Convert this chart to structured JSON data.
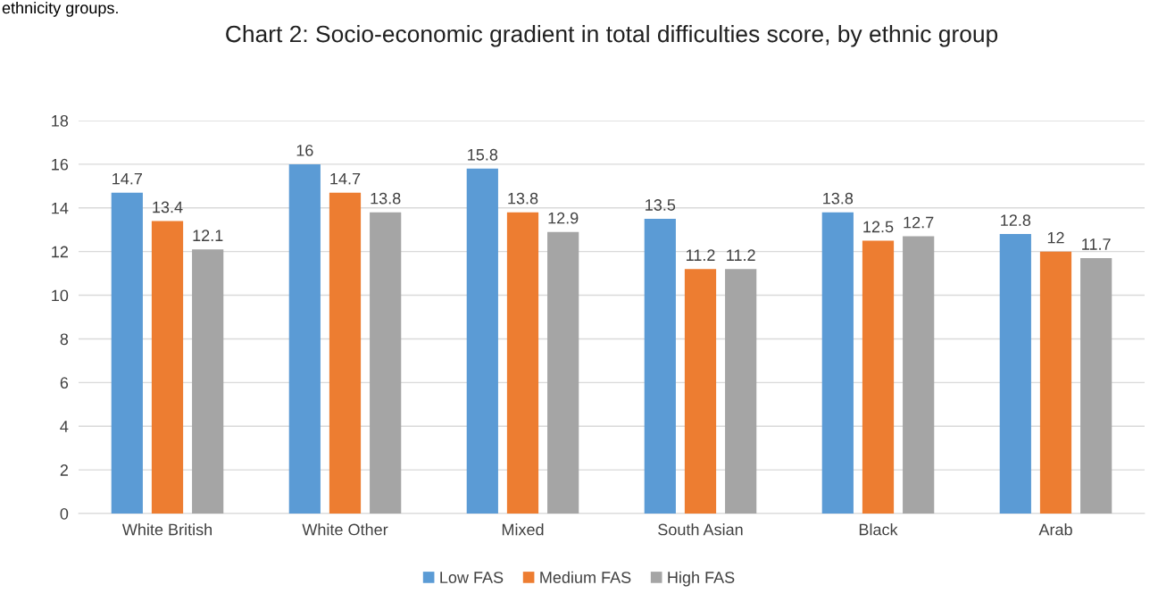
{
  "chart_data": {
    "type": "bar",
    "title": "Chart 2: Socio-economic gradient in total difficulties score, by ethnic group",
    "annotations": [
      "ethnicity groups."
    ],
    "categories": [
      "White British",
      "White Other",
      "Mixed",
      "South Asian",
      "Black",
      "Arab"
    ],
    "series": [
      {
        "name": "Low FAS",
        "color": "#5b9bd5",
        "values": [
          14.7,
          16,
          15.8,
          13.5,
          13.8,
          12.8
        ]
      },
      {
        "name": "Medium FAS",
        "color": "#ed7d31",
        "values": [
          13.4,
          14.7,
          13.8,
          11.2,
          12.5,
          12
        ]
      },
      {
        "name": "High FAS",
        "color": "#a5a5a5",
        "values": [
          12.1,
          13.8,
          12.9,
          11.2,
          12.7,
          11.7
        ]
      }
    ],
    "ylim": [
      0,
      18
    ],
    "yticks": [
      0,
      2,
      4,
      6,
      8,
      10,
      12,
      14,
      16,
      18
    ],
    "grid": "y",
    "legend": "bottom",
    "data_labels": true
  }
}
